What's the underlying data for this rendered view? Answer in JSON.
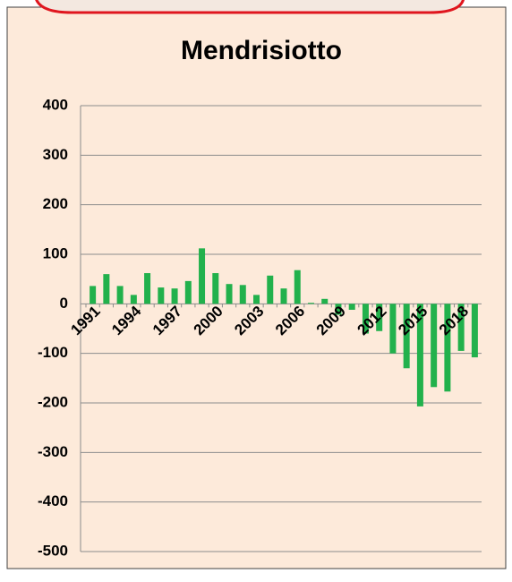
{
  "chart_data": {
    "type": "bar",
    "title": "Mendrisiotto",
    "categories": [
      "1991",
      null,
      null,
      "1994",
      null,
      null,
      "1997",
      null,
      null,
      "2000",
      null,
      null,
      "2003",
      null,
      null,
      "2006",
      null,
      null,
      "2009",
      null,
      null,
      "2012",
      null,
      null,
      "2015",
      null,
      null,
      "2018",
      null
    ],
    "values": [
      36,
      60,
      36,
      18,
      62,
      33,
      31,
      46,
      112,
      62,
      40,
      38,
      18,
      57,
      31,
      68,
      2,
      10,
      -22,
      -12,
      -60,
      -55,
      -100,
      -130,
      -207,
      -168,
      -177,
      -95,
      -108
    ],
    "color": "#22b14c",
    "ylim": [
      -500,
      400
    ],
    "yticks": [
      -500,
      -400,
      -300,
      -200,
      -100,
      0,
      100,
      200,
      300,
      400
    ],
    "grid": true
  }
}
